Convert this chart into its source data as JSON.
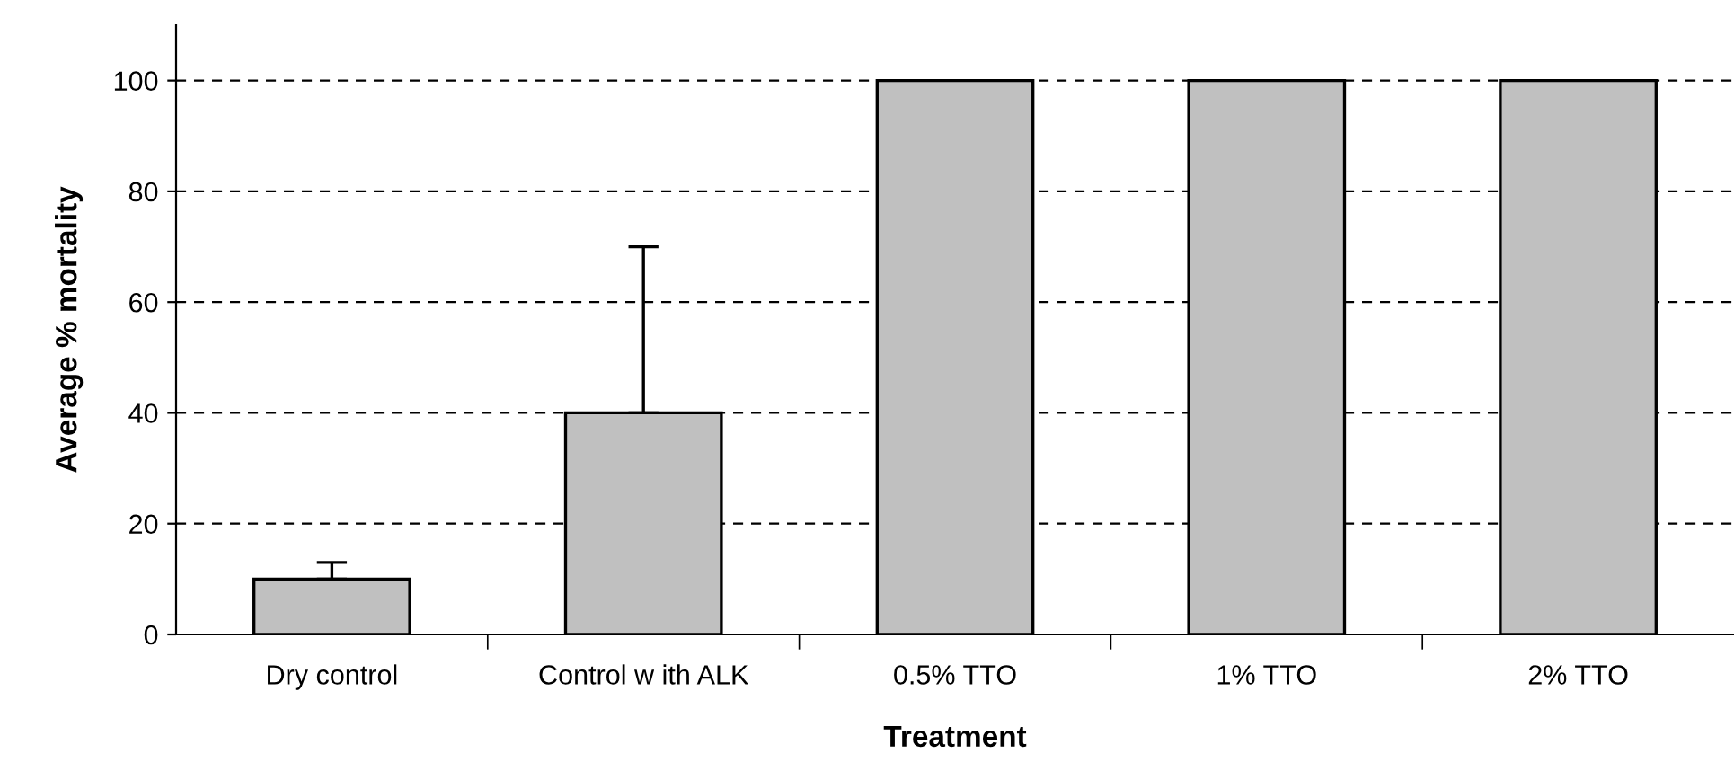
{
  "chart_data": {
    "type": "bar",
    "xlabel": "Treatment",
    "ylabel": "Average % mortality",
    "categories": [
      "Dry control",
      "Control w ith ALK",
      "0.5% TTO",
      "1% TTO",
      "2% TTO"
    ],
    "values": [
      10,
      40,
      100,
      100,
      100
    ],
    "errors": [
      [
        10,
        13
      ],
      [
        40,
        70
      ],
      null,
      null,
      null
    ],
    "color": "#c0c0c0",
    "ylim": [
      0,
      110
    ],
    "yticks": [
      0,
      20,
      40,
      60,
      80,
      100
    ],
    "grid": "y",
    "line_style": "dashed"
  }
}
